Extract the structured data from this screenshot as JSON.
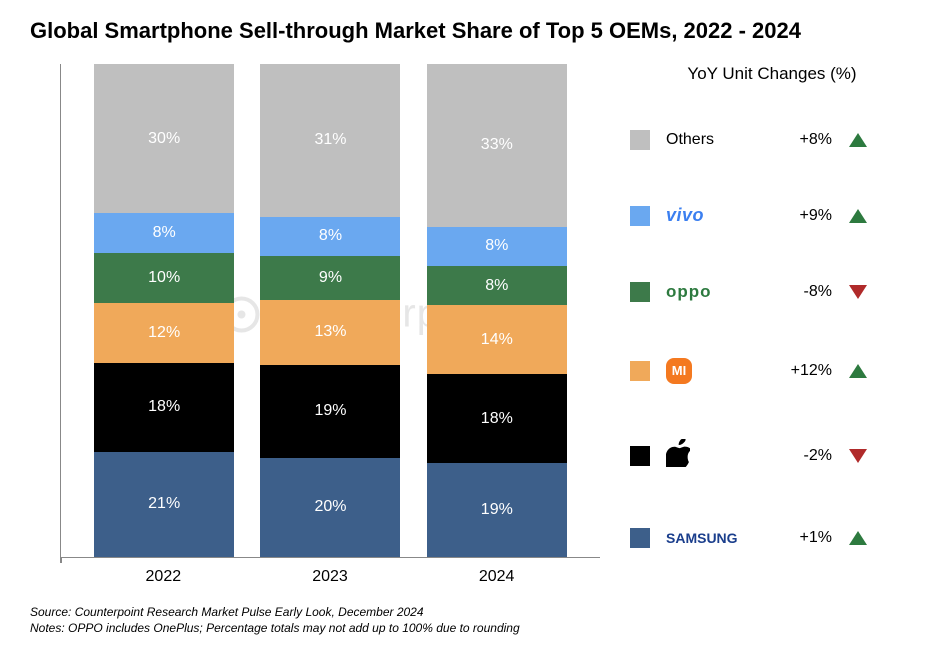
{
  "title": "Global Smartphone Sell-through Market Share of Top 5 OEMs, 2022 - 2024",
  "chart": {
    "type": "stacked-bar",
    "categories": [
      "2022",
      "2023",
      "2024"
    ],
    "watermark": "Counterpoint",
    "y_axis": {
      "min": 0,
      "max": 100,
      "visible_ticks": false
    },
    "bar_total_pct": 99,
    "series": [
      {
        "key": "samsung",
        "name": "Samsung",
        "color": "#3d5f8a",
        "values": [
          21,
          20,
          19
        ]
      },
      {
        "key": "apple",
        "name": "Apple",
        "color": "#000000",
        "values": [
          18,
          19,
          18
        ]
      },
      {
        "key": "xiaomi",
        "name": "Xiaomi",
        "color": "#f0a95a",
        "values": [
          12,
          13,
          14
        ]
      },
      {
        "key": "oppo",
        "name": "Oppo",
        "color": "#3d7a4a",
        "values": [
          10,
          9,
          8
        ]
      },
      {
        "key": "vivo",
        "name": "Vivo",
        "color": "#6aa8f0",
        "values": [
          8,
          8,
          8
        ]
      },
      {
        "key": "others",
        "name": "Others",
        "color": "#bfbfbf",
        "values": [
          30,
          31,
          33
        ]
      }
    ],
    "label_color": "#ffffff",
    "label_fontsize": 16,
    "axis_color": "#888888"
  },
  "legend": {
    "title": "YoY Unit Changes (%)",
    "up_color": "#2d7a3f",
    "down_color": "#b02a2a",
    "rows": [
      {
        "key": "others",
        "label": "Others",
        "color": "#bfbfbf",
        "yoy": "+8%",
        "dir": "up",
        "brand_style": "others"
      },
      {
        "key": "vivo",
        "label": "vivo",
        "color": "#6aa8f0",
        "yoy": "+9%",
        "dir": "up",
        "brand_style": "vivo"
      },
      {
        "key": "oppo",
        "label": "oppo",
        "color": "#3d7a4a",
        "yoy": "-8%",
        "dir": "down",
        "brand_style": "oppo"
      },
      {
        "key": "xiaomi",
        "label": "mi",
        "color": "#f0a95a",
        "yoy": "+12%",
        "dir": "up",
        "brand_style": "mi"
      },
      {
        "key": "apple",
        "label": "Apple",
        "color": "#000000",
        "yoy": "-2%",
        "dir": "down",
        "brand_style": "apple"
      },
      {
        "key": "samsung",
        "label": "SAMSUNG",
        "color": "#3d5f8a",
        "yoy": "+1%",
        "dir": "up",
        "brand_style": "samsung"
      }
    ]
  },
  "footer": {
    "source": "Source: Counterpoint Research Market Pulse Early Look, December 2024",
    "notes": "Notes: OPPO includes OnePlus; Percentage totals may not add up to 100% due to rounding"
  }
}
